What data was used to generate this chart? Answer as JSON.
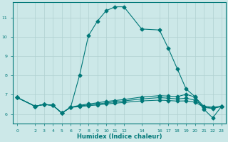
{
  "xlabel": "Humidex (Indice chaleur)",
  "ylabel": "",
  "bg_color": "#cce8e8",
  "line_color": "#007878",
  "grid_color": "#b0d0d0",
  "x_ticks": [
    0,
    2,
    3,
    4,
    5,
    6,
    7,
    8,
    9,
    10,
    11,
    12,
    14,
    16,
    17,
    18,
    19,
    20,
    21,
    22,
    23
  ],
  "y_ticks": [
    6,
    7,
    8,
    9,
    10,
    11
  ],
  "ylim": [
    5.5,
    11.8
  ],
  "xlim": [
    -0.5,
    23.5
  ],
  "line1_x": [
    0,
    2,
    3,
    4,
    5,
    6,
    7,
    8,
    9,
    10,
    11,
    12,
    14,
    16,
    17,
    18,
    19,
    20,
    21,
    22,
    23
  ],
  "line1_y": [
    6.85,
    6.4,
    6.5,
    6.45,
    6.05,
    6.35,
    8.0,
    10.05,
    10.8,
    11.35,
    11.55,
    11.55,
    10.4,
    10.35,
    9.4,
    8.35,
    7.3,
    6.9,
    6.25,
    5.8,
    6.4
  ],
  "line2_x": [
    0,
    2,
    3,
    4,
    5,
    6,
    7,
    8,
    9,
    10,
    11,
    12,
    14,
    16,
    17,
    18,
    19,
    20,
    21,
    22,
    23
  ],
  "line2_y": [
    6.85,
    6.4,
    6.5,
    6.45,
    6.05,
    6.35,
    6.45,
    6.52,
    6.58,
    6.65,
    6.7,
    6.75,
    6.88,
    6.95,
    6.93,
    6.9,
    7.02,
    6.88,
    6.4,
    6.35,
    6.4
  ],
  "line3_x": [
    0,
    2,
    3,
    4,
    5,
    6,
    7,
    8,
    9,
    10,
    11,
    12,
    14,
    16,
    17,
    18,
    19,
    20,
    21,
    22,
    23
  ],
  "line3_y": [
    6.85,
    6.4,
    6.5,
    6.45,
    6.05,
    6.35,
    6.42,
    6.47,
    6.52,
    6.58,
    6.63,
    6.68,
    6.78,
    6.85,
    6.82,
    6.78,
    6.82,
    6.72,
    6.38,
    6.3,
    6.4
  ],
  "line4_x": [
    0,
    2,
    3,
    4,
    5,
    6,
    7,
    8,
    9,
    10,
    11,
    12,
    14,
    16,
    17,
    18,
    19,
    20,
    21,
    22,
    23
  ],
  "line4_y": [
    6.85,
    6.4,
    6.5,
    6.45,
    6.05,
    6.35,
    6.38,
    6.43,
    6.47,
    6.52,
    6.56,
    6.6,
    6.68,
    6.72,
    6.7,
    6.67,
    6.68,
    6.62,
    6.35,
    6.28,
    6.4
  ]
}
